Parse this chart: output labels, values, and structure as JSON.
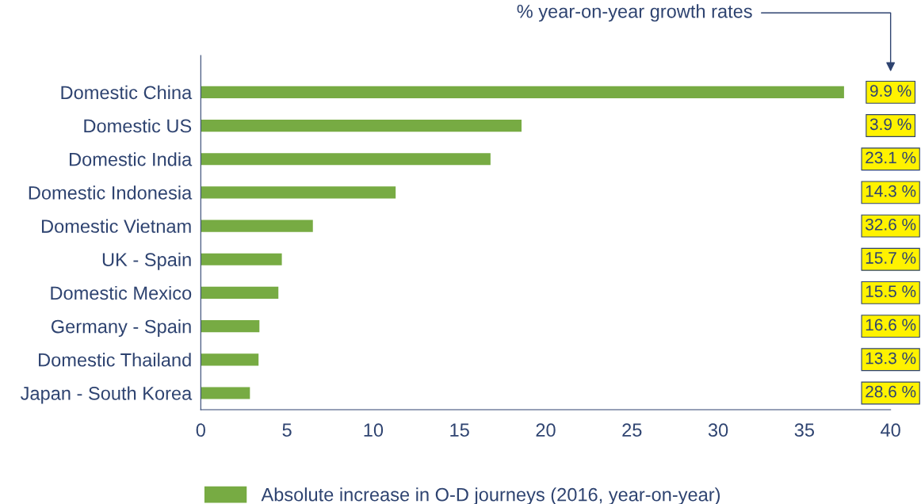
{
  "chart_data": {
    "type": "bar",
    "orientation": "horizontal",
    "categories": [
      "Domestic China",
      "Domestic US",
      "Domestic India",
      "Domestic Indonesia",
      "Domestic Vietnam",
      "UK - Spain",
      "Domestic Mexico",
      "Germany - Spain",
      "Domestic Thailand",
      "Japan - South Korea"
    ],
    "series": [
      {
        "name": "Absolute increase in O-D journeys (2016, year-on-year)",
        "color": "#77ab43",
        "values": [
          37.3,
          18.6,
          16.8,
          11.3,
          6.5,
          4.7,
          4.5,
          3.4,
          3.35,
          2.85
        ]
      }
    ],
    "xlim": [
      0,
      40
    ],
    "xticks": [
      0,
      5,
      10,
      15,
      20,
      25,
      30,
      35,
      40
    ],
    "grid": false,
    "legend": "bottom",
    "annotations": [
      "% year-on-year growth rates",
      "9.9 %",
      "3.9 %",
      "23.1 %",
      "14.3 %",
      "32.6 %",
      "15.7 %",
      "15.5 %",
      "16.6 %",
      "13.3 %",
      "28.6 %"
    ]
  }
}
